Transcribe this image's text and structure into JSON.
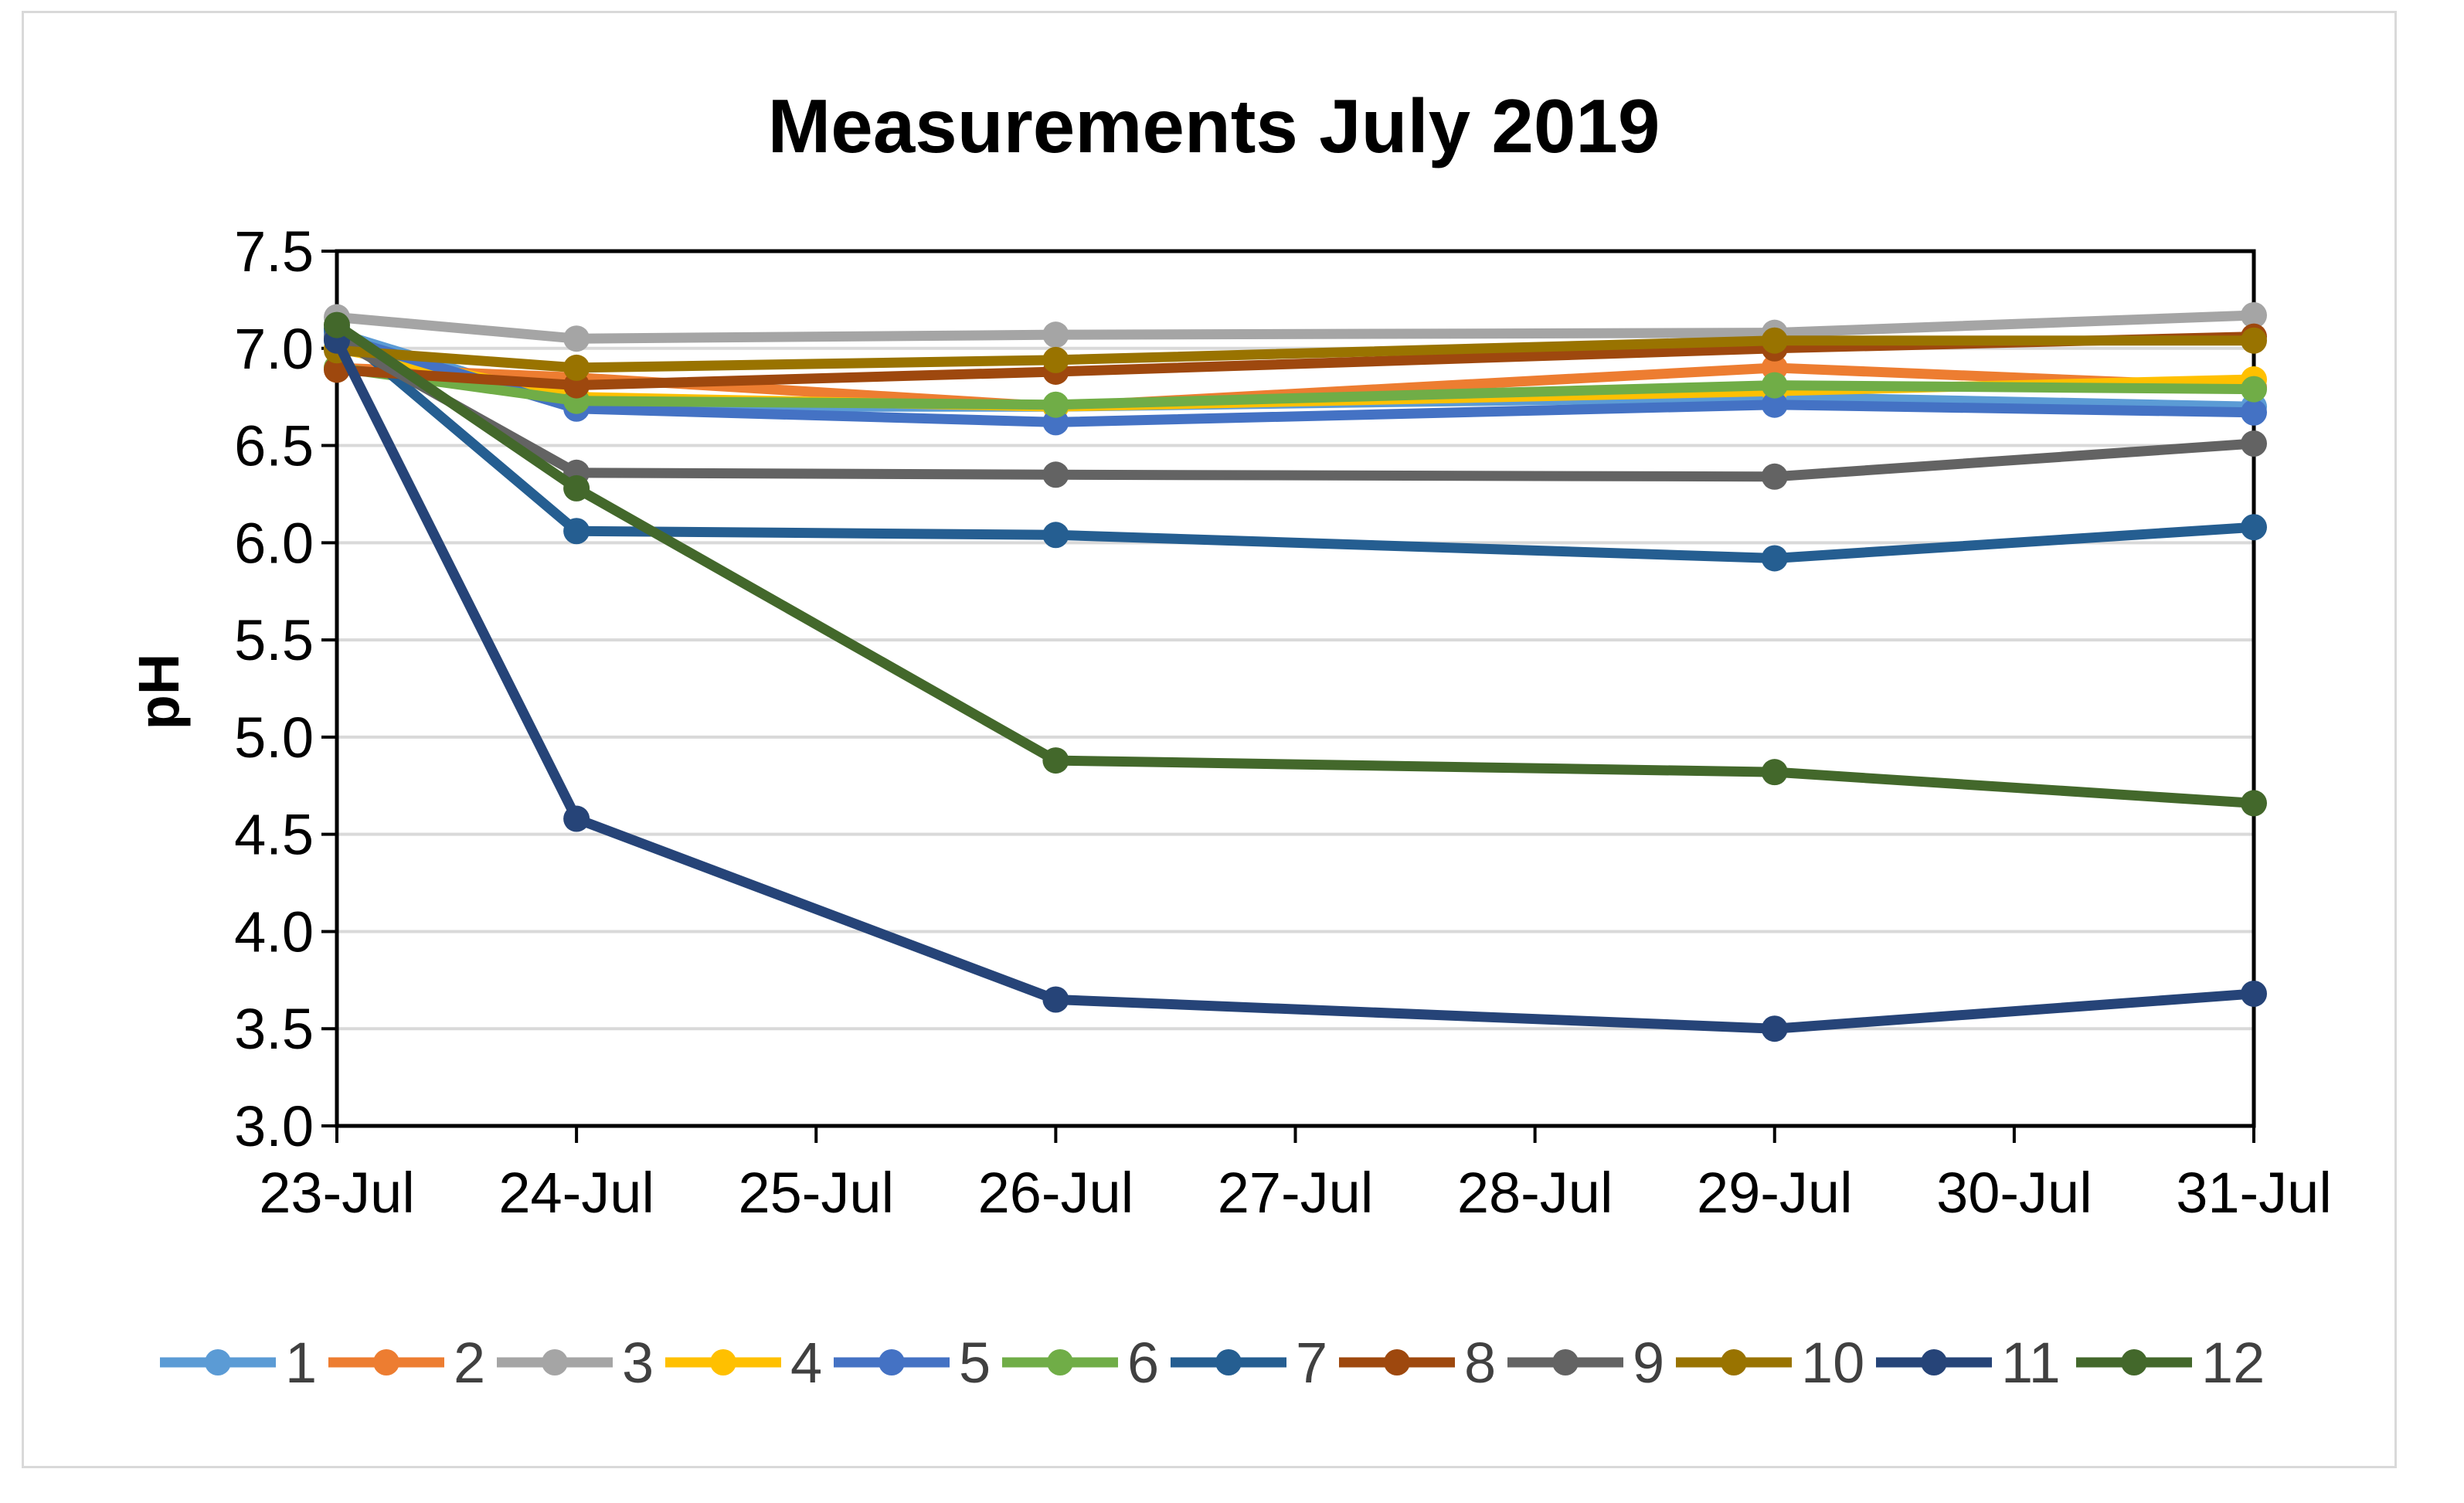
{
  "chart_data": {
    "type": "line",
    "title": "Measurements July 2019",
    "xlabel": "",
    "ylabel": "pH",
    "ylim": [
      3.0,
      7.5
    ],
    "yticks": [
      "3.0",
      "3.5",
      "4.0",
      "4.5",
      "5.0",
      "5.5",
      "6.0",
      "6.5",
      "7.0",
      "7.5"
    ],
    "ytick_values": [
      3.0,
      3.5,
      4.0,
      4.5,
      5.0,
      5.5,
      6.0,
      6.5,
      7.0,
      7.5
    ],
    "xticks": [
      "23-Jul",
      "24-Jul",
      "25-Jul",
      "26-Jul",
      "27-Jul",
      "28-Jul",
      "29-Jul",
      "30-Jul",
      "31-Jul"
    ],
    "xtick_days": [
      23,
      24,
      25,
      26,
      27,
      28,
      29,
      30,
      31
    ],
    "x_days": [
      23,
      24,
      26,
      29,
      31
    ],
    "grid": "horizontal",
    "legend_position": "bottom",
    "series": [
      {
        "name": "1",
        "color": "#5B9BD5",
        "values": [
          7.08,
          6.7,
          6.7,
          6.75,
          6.7
        ]
      },
      {
        "name": "2",
        "color": "#ED7D31",
        "values": [
          6.9,
          6.85,
          6.7,
          6.9,
          6.8
        ]
      },
      {
        "name": "3",
        "color": "#A5A5A5",
        "values": [
          7.16,
          7.05,
          7.07,
          7.08,
          7.17
        ]
      },
      {
        "name": "4",
        "color": "#FFC000",
        "values": [
          7.0,
          6.75,
          6.7,
          6.78,
          6.84
        ]
      },
      {
        "name": "5",
        "color": "#4472C4",
        "values": [
          7.06,
          6.69,
          6.62,
          6.71,
          6.67
        ]
      },
      {
        "name": "6",
        "color": "#70AD47",
        "values": [
          6.9,
          6.73,
          6.71,
          6.81,
          6.79
        ]
      },
      {
        "name": "7",
        "color": "#255E91",
        "values": [
          7.1,
          6.06,
          6.04,
          5.92,
          6.08
        ]
      },
      {
        "name": "8",
        "color": "#9E480E",
        "values": [
          6.89,
          6.81,
          6.88,
          7.0,
          7.06
        ]
      },
      {
        "name": "9",
        "color": "#636363",
        "values": [
          7.05,
          6.36,
          6.35,
          6.34,
          6.51
        ]
      },
      {
        "name": "10",
        "color": "#997300",
        "values": [
          6.99,
          6.9,
          6.94,
          7.04,
          7.04
        ]
      },
      {
        "name": "11",
        "color": "#264478",
        "values": [
          7.04,
          4.58,
          3.65,
          3.5,
          3.68
        ]
      },
      {
        "name": "12",
        "color": "#43682B",
        "values": [
          7.12,
          6.28,
          4.88,
          4.82,
          4.66
        ]
      }
    ]
  }
}
